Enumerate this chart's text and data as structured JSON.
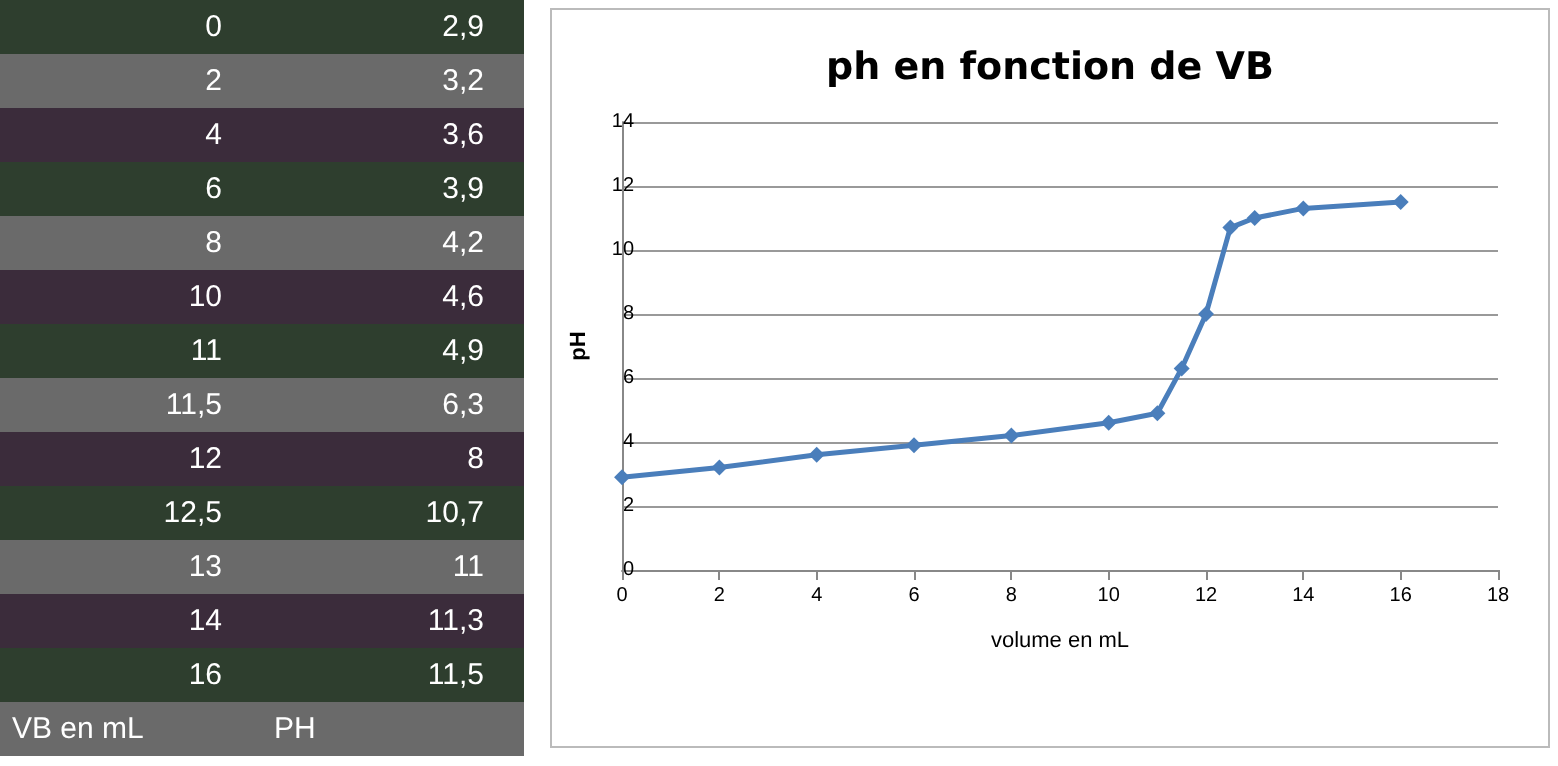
{
  "chart_data": [
    {
      "type": "other",
      "annotations": [
        "0",
        "2,9",
        "2",
        "3,2",
        "4",
        "3,6",
        "6",
        "3,9",
        "8",
        "4,2",
        "10",
        "4,6",
        "11",
        "4,9",
        "11,5",
        "6,3",
        "12",
        "8",
        "12,5",
        "10,7",
        "13",
        "11",
        "14",
        "11,3",
        "16",
        "11,5",
        "VB en mL",
        "PH"
      ]
    },
    {
      "type": "line",
      "title": "ph en fonction de VB",
      "xlabel": "volume en mL",
      "ylabel": "pH",
      "x": [
        0,
        2,
        4,
        6,
        8,
        10,
        11,
        11.5,
        12,
        12.5,
        13,
        14,
        16
      ],
      "series": [
        {
          "color": "#4a7ebb",
          "values": [
            2.9,
            3.2,
            3.6,
            3.9,
            4.2,
            4.6,
            4.9,
            6.3,
            8,
            10.7,
            11,
            11.3,
            11.5
          ]
        }
      ],
      "xlim": [
        0,
        18
      ],
      "xticks": [
        0,
        2,
        4,
        6,
        8,
        10,
        12,
        14,
        16,
        18
      ],
      "ylim": [
        0,
        14
      ],
      "yticks": [
        0,
        2,
        4,
        6,
        8,
        10,
        12,
        14
      ],
      "grid": "y",
      "marker": "diamond",
      "line_style": "solid"
    }
  ]
}
